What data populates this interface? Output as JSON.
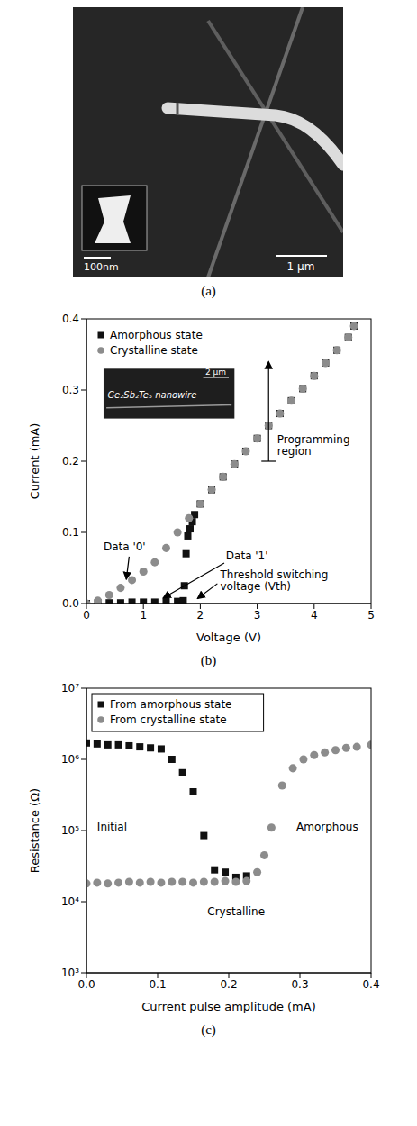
{
  "image_panel": {
    "caption": "(a)",
    "inset_scale_bar": "100nm",
    "scale_bar": "1 µm"
  },
  "chart_data": [
    {
      "caption": "(b)",
      "type": "scatter",
      "x_label": "Voltage (V)",
      "y_label": "Current (mA)",
      "xlim": [
        0,
        5
      ],
      "xticks": [
        0,
        1,
        2,
        3,
        4,
        5
      ],
      "ylim": [
        0,
        0.4
      ],
      "yticks": [
        {
          "value": 0,
          "label": "0.0"
        },
        0.1,
        0.2,
        0.3,
        0.4
      ],
      "grid": false,
      "legend": "upper left",
      "series": [
        {
          "name": "Amorphous state",
          "color": "#111111",
          "marker": "square",
          "x": [
            0,
            0.2,
            0.4,
            0.6,
            0.8,
            1.0,
            1.2,
            1.4,
            1.6,
            1.7,
            1.72,
            1.75,
            1.78,
            1.82,
            1.86,
            1.9,
            2.0,
            2.2,
            2.4,
            2.6,
            2.8,
            3.0,
            3.2,
            3.4,
            3.6,
            3.8,
            4.0,
            4.2,
            4.4,
            4.6,
            4.7
          ],
          "values": [
            0,
            0.001,
            0.001,
            0.001,
            0.002,
            0.002,
            0.002,
            0.003,
            0.003,
            0.004,
            0.025,
            0.07,
            0.095,
            0.105,
            0.115,
            0.125,
            0.14,
            0.16,
            0.178,
            0.196,
            0.214,
            0.232,
            0.25,
            0.267,
            0.285,
            0.302,
            0.32,
            0.338,
            0.356,
            0.374,
            0.39
          ]
        },
        {
          "name": "Crystalline state",
          "color": "#8c8c8c",
          "marker": "circle",
          "x": [
            0,
            0.2,
            0.4,
            0.6,
            0.8,
            1.0,
            1.2,
            1.4,
            1.6,
            1.8,
            2.0,
            2.2,
            2.4,
            2.6,
            2.8,
            3.0,
            3.2,
            3.4,
            3.6,
            3.8,
            4.0,
            4.2,
            4.4,
            4.6,
            4.7
          ],
          "values": [
            0,
            0.004,
            0.012,
            0.022,
            0.033,
            0.045,
            0.058,
            0.078,
            0.1,
            0.12,
            0.14,
            0.16,
            0.178,
            0.196,
            0.214,
            0.232,
            0.25,
            0.267,
            0.285,
            0.302,
            0.32,
            0.338,
            0.356,
            0.374,
            0.39
          ]
        }
      ],
      "annotations": [
        "Programming region",
        "Data '0'",
        "Data '1'",
        "Threshold switching voltage (Vth)"
      ],
      "inset": {
        "label": "Ge₂Sb₂Te₅ nanowire",
        "scale_bar": "2 µm"
      }
    },
    {
      "caption": "(c)",
      "type": "scatter",
      "x_label": "Current pulse amplitude (mA)",
      "y_label": "Resistance (Ω)",
      "log": "y",
      "xlim": [
        0,
        0.4
      ],
      "xticks": [
        {
          "value": 0,
          "label": "0.0"
        },
        0.1,
        0.2,
        0.3,
        0.4
      ],
      "ylim": [
        1000,
        10000000
      ],
      "yticks": [
        {
          "value": 1000,
          "label": "10³"
        },
        {
          "value": 10000,
          "label": "10⁴"
        },
        {
          "value": 100000,
          "label": "10⁵"
        },
        {
          "value": 1000000,
          "label": "10⁶"
        },
        {
          "value": 10000000,
          "label": "10⁷"
        }
      ],
      "grid": false,
      "legend": "upper left",
      "series": [
        {
          "name": "From amorphous state",
          "color": "#111111",
          "marker": "square",
          "x": [
            0,
            0.015,
            0.03,
            0.045,
            0.06,
            0.075,
            0.09,
            0.105,
            0.12,
            0.135,
            0.15,
            0.165,
            0.18,
            0.195,
            0.21,
            0.225
          ],
          "values": [
            1700000,
            1650000,
            1600000,
            1600000,
            1550000,
            1500000,
            1450000,
            1400000,
            1000000,
            650000,
            350000,
            85000,
            28000,
            26000,
            22000,
            23000
          ]
        },
        {
          "name": "From crystalline state",
          "color": "#8c8c8c",
          "marker": "circle",
          "x": [
            0,
            0.015,
            0.03,
            0.045,
            0.06,
            0.075,
            0.09,
            0.105,
            0.12,
            0.135,
            0.15,
            0.165,
            0.18,
            0.195,
            0.21,
            0.225,
            0.24,
            0.25,
            0.26,
            0.275,
            0.29,
            0.305,
            0.32,
            0.335,
            0.35,
            0.365,
            0.38,
            0.4
          ],
          "values": [
            18000,
            18500,
            18000,
            18500,
            19000,
            18500,
            19000,
            18500,
            19000,
            19000,
            18500,
            19000,
            19000,
            19500,
            19000,
            19500,
            26000,
            45000,
            110000,
            430000,
            750000,
            1000000,
            1150000,
            1250000,
            1350000,
            1450000,
            1500000,
            1600000
          ]
        }
      ],
      "annotations": [
        "Initial",
        "Crystalline",
        "Amorphous"
      ]
    }
  ]
}
